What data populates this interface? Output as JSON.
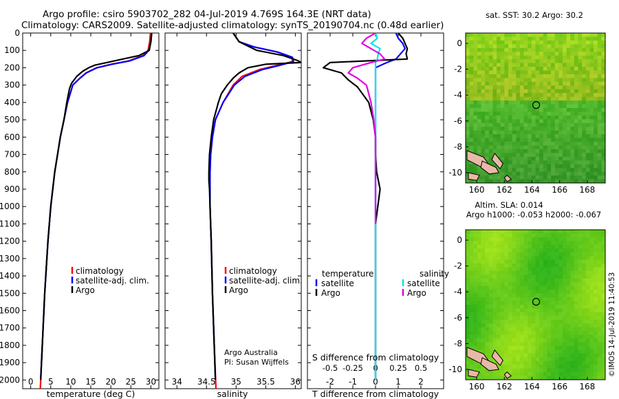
{
  "header": {
    "line1": "Argo profile: csiro 5903702_282 04-Jul-2019 4.769S 164.3E (NRT data)",
    "line2": "Climatology: CARS2009. Satellite-adjusted climatology: synTS_20190704.nc (0.48d earlier)"
  },
  "credit": "Argo Australia",
  "credit_pi": "PI: Susan Wijffels",
  "side_stamp": "©IMOS 14-Jul-2019 11:40:53",
  "colors": {
    "climatology": "#ff0000",
    "satellite": "#0000ff",
    "argo": "#000000",
    "sal_satellite": "#00e5e5",
    "sal_argo": "#e000e0",
    "land": "#e8b8a8"
  },
  "chart_data": [
    {
      "id": "temperature",
      "type": "line",
      "xlabel": "temperature (deg C)",
      "ylabel": "",
      "xlim": [
        -2,
        32
      ],
      "ylim": [
        2050,
        0
      ],
      "xticks": [
        0,
        5,
        10,
        15,
        20,
        25,
        30
      ],
      "yticks": [
        0,
        100,
        200,
        300,
        400,
        500,
        600,
        700,
        800,
        900,
        1000,
        1100,
        1200,
        1300,
        1400,
        1500,
        1600,
        1700,
        1800,
        1900,
        2000
      ],
      "legend": [
        {
          "label": "climatology",
          "color": "#ff0000"
        },
        {
          "label": "satellite-adj. clim.",
          "color": "#0000ff"
        },
        {
          "label": "Argo",
          "color": "#000000"
        }
      ],
      "series": [
        {
          "name": "climatology",
          "color": "#ff0000",
          "depth": [
            0,
            50,
            100,
            130,
            160,
            180,
            200,
            230,
            260,
            300,
            400,
            500,
            600,
            700,
            800,
            1000,
            1200,
            1500,
            1800,
            2050
          ],
          "values": [
            29.9,
            29.7,
            29.3,
            28.0,
            24.5,
            20.0,
            16.5,
            13.8,
            12.3,
            10.5,
            9.2,
            8.3,
            7.4,
            6.7,
            6.0,
            5.0,
            4.3,
            3.5,
            2.9,
            2.4
          ]
        },
        {
          "name": "satellite-adj. clim.",
          "color": "#0000ff",
          "depth": [
            0,
            50,
            100,
            130,
            160,
            180,
            200,
            230,
            260,
            300,
            400,
            500,
            600,
            700,
            800,
            1000,
            1200,
            1500,
            1800,
            1990
          ],
          "values": [
            30.2,
            30.0,
            29.5,
            28.3,
            24.8,
            20.3,
            16.6,
            13.9,
            12.3,
            10.5,
            9.2,
            8.3,
            7.4,
            6.7,
            6.0,
            5.0,
            4.3,
            3.5,
            2.9,
            2.5
          ]
        },
        {
          "name": "Argo",
          "color": "#000000",
          "depth": [
            0,
            50,
            100,
            130,
            150,
            170,
            185,
            200,
            220,
            250,
            290,
            320,
            400,
            500,
            600,
            700,
            800,
            1000,
            1200,
            1500,
            1800,
            2000
          ],
          "values": [
            30.2,
            30.0,
            29.6,
            27.0,
            23.0,
            19.0,
            16.0,
            14.5,
            13.0,
            11.5,
            10.2,
            9.7,
            9.0,
            8.3,
            7.4,
            6.7,
            6.0,
            5.0,
            4.3,
            3.5,
            2.9,
            2.5
          ]
        }
      ]
    },
    {
      "id": "salinity",
      "type": "line",
      "xlabel": "salinity",
      "ylabel": "",
      "xlim": [
        33.8,
        36.1
      ],
      "ylim": [
        2050,
        0
      ],
      "xticks": [
        34,
        34.5,
        35,
        35.5,
        36
      ],
      "xticklabels": [
        "34",
        "34.5",
        "35",
        "35.5",
        "36"
      ],
      "legend": [
        {
          "label": "climatology",
          "color": "#ff0000"
        },
        {
          "label": "satellite-adj. clim.",
          "color": "#0000ff"
        },
        {
          "label": "Argo",
          "color": "#000000"
        }
      ],
      "series": [
        {
          "name": "climatology",
          "color": "#ff0000",
          "depth": [
            0,
            50,
            80,
            110,
            140,
            165,
            185,
            210,
            250,
            300,
            400,
            500,
            600,
            700,
            800,
            1000,
            1200,
            1500,
            1800,
            2050
          ],
          "values": [
            34.95,
            35.05,
            35.3,
            35.7,
            35.95,
            35.95,
            35.7,
            35.4,
            35.1,
            34.95,
            34.78,
            34.65,
            34.6,
            34.57,
            34.56,
            34.56,
            34.58,
            34.6,
            34.63,
            34.66
          ]
        },
        {
          "name": "satellite-adj. clim.",
          "color": "#0000ff",
          "depth": [
            0,
            50,
            80,
            110,
            140,
            165,
            185,
            210,
            250,
            300,
            400,
            500,
            600,
            700,
            800,
            1000,
            1200,
            1500,
            1800,
            2000
          ],
          "values": [
            34.95,
            35.05,
            35.3,
            35.7,
            35.95,
            35.97,
            35.75,
            35.45,
            35.15,
            34.97,
            34.78,
            34.65,
            34.6,
            34.57,
            34.56,
            34.56,
            34.58,
            34.6,
            34.63,
            34.65
          ]
        },
        {
          "name": "Argo",
          "color": "#000000",
          "depth": [
            0,
            50,
            100,
            130,
            160,
            170,
            180,
            200,
            230,
            260,
            300,
            350,
            400,
            500,
            600,
            700,
            800,
            850,
            900,
            1000,
            1200,
            1500,
            1800,
            2000
          ],
          "values": [
            34.95,
            35.05,
            35.35,
            35.8,
            36.05,
            36.1,
            35.5,
            35.2,
            35.05,
            34.95,
            34.85,
            34.75,
            34.7,
            34.62,
            34.58,
            34.55,
            34.54,
            34.54,
            34.55,
            34.56,
            34.58,
            34.6,
            34.63,
            34.65
          ]
        }
      ]
    },
    {
      "id": "differences",
      "type": "line",
      "xlabel": "T difference from climatology",
      "xlabel2": "S difference from climatology",
      "xlim": [
        -3,
        3
      ],
      "ylim": [
        2050,
        0
      ],
      "xticks": [
        -2,
        -1,
        0,
        1,
        2
      ],
      "xticks2": [
        -0.5,
        -0.25,
        0,
        0.25,
        0.5
      ],
      "xticklabels2": [
        "-0.5",
        "-0.25",
        "0",
        "0.25",
        "0.5"
      ],
      "legend": [
        {
          "label": "temperature",
          "color": ""
        },
        {
          "label": "satellite",
          "color": "#0000ff"
        },
        {
          "label": "Argo",
          "color": "#000000"
        },
        {
          "label": "salinity",
          "color": ""
        },
        {
          "label": "satellite",
          "color": "#00e5e5"
        },
        {
          "label": "Argo",
          "color": "#e000e0"
        }
      ],
      "series": [
        {
          "name": "T satellite",
          "color": "#0000ff",
          "depth": [
            0,
            30,
            60,
            90,
            120,
            150,
            170,
            200,
            300,
            600,
            1000,
            1500,
            2000
          ],
          "values": [
            0.9,
            1.0,
            1.2,
            1.3,
            1.1,
            0.9,
            0.5,
            0.0,
            0.0,
            0.0,
            0.0,
            0.0,
            0.0
          ]
        },
        {
          "name": "T Argo",
          "color": "#000000",
          "depth": [
            0,
            30,
            60,
            90,
            120,
            150,
            170,
            200,
            230,
            270,
            310,
            400,
            500,
            600,
            700,
            800,
            900,
            1000,
            1100,
            1300,
            1500,
            1700,
            1900,
            2000
          ],
          "values": [
            1.0,
            1.2,
            1.3,
            1.4,
            1.35,
            1.4,
            -2.0,
            -2.3,
            -1.5,
            -1.2,
            -0.8,
            -0.3,
            -0.1,
            0.0,
            0.0,
            0.05,
            0.2,
            0.1,
            0.0,
            0.0,
            0.0,
            0.0,
            0.0,
            0.0
          ]
        },
        {
          "name": "S satellite",
          "color": "#00e5e5",
          "depth": [
            0,
            30,
            60,
            90,
            120,
            150,
            170,
            200,
            250,
            400,
            600,
            900,
            1100,
            1500,
            2000
          ],
          "values": [
            0.0,
            0.02,
            -0.05,
            0.05,
            0.03,
            0.02,
            0.0,
            0.0,
            0.0,
            0.0,
            0.0,
            0.0,
            0.0,
            0.0,
            0.0
          ]
        },
        {
          "name": "S Argo",
          "color": "#e000e0",
          "depth": [
            0,
            30,
            60,
            90,
            120,
            150,
            170,
            200,
            230,
            260,
            300,
            400,
            500,
            600,
            800,
            900,
            1000,
            1100
          ],
          "values": [
            0.0,
            -0.1,
            -0.15,
            -0.05,
            0.05,
            0.1,
            -0.05,
            -0.25,
            -0.3,
            -0.2,
            -0.1,
            -0.05,
            -0.02,
            0.0,
            0.0,
            0.0,
            0.0,
            0.0
          ]
        }
      ]
    },
    {
      "id": "sst-map",
      "type": "heatmap",
      "title": "sat. SST: 30.2 Argo: 30.2",
      "xlim": [
        159.2,
        169.3
      ],
      "ylim": [
        -10.8,
        0.8
      ],
      "xticks": [
        160,
        162,
        164,
        166,
        168
      ],
      "yticks": [
        0,
        -2,
        -4,
        -6,
        -8,
        -10
      ],
      "marker": {
        "lon": 164.3,
        "lat": -4.769
      }
    },
    {
      "id": "sla-map",
      "type": "heatmap",
      "title": "Altim. SLA: 0.014",
      "title2": "Argo h1000: -0.053 h2000: -0.067",
      "xlim": [
        159.2,
        169.3
      ],
      "ylim": [
        -10.8,
        0.8
      ],
      "xticks": [
        160,
        162,
        164,
        166,
        168
      ],
      "yticks": [
        0,
        -2,
        -4,
        -6,
        -8,
        -10
      ],
      "marker": {
        "lon": 164.3,
        "lat": -4.769
      }
    }
  ]
}
